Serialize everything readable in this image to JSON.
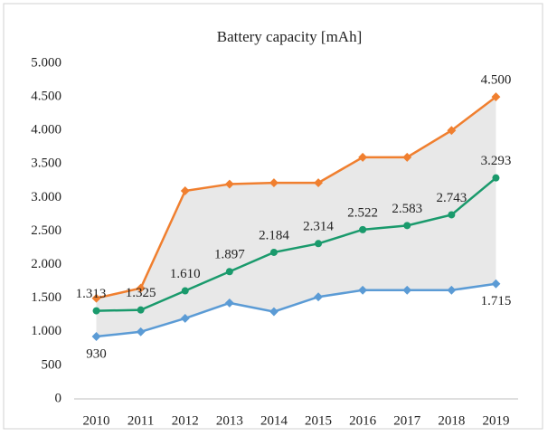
{
  "chart_data": {
    "type": "line",
    "title": "Battery capacity [mAh]",
    "categories": [
      "2010",
      "2011",
      "2012",
      "2013",
      "2014",
      "2015",
      "2016",
      "2017",
      "2018",
      "2019"
    ],
    "series": [
      {
        "color": "#f07f2f",
        "values": [
          1500,
          1650,
          3100,
          3200,
          3220,
          3220,
          3600,
          3600,
          4000,
          4500
        ],
        "value_labels": [
          null,
          null,
          null,
          null,
          null,
          null,
          null,
          null,
          null,
          "4.500"
        ]
      },
      {
        "color": "#1a9a6c",
        "values": [
          1313,
          1325,
          1610,
          1897,
          2184,
          2314,
          2522,
          2583,
          2743,
          3293
        ],
        "value_labels": [
          "1.313",
          "1.325",
          "1.610",
          "1.897",
          "2.184",
          "2.314",
          "2.522",
          "2.583",
          "2.743",
          "3.293"
        ]
      },
      {
        "color": "#5b9bd5",
        "values": [
          930,
          1000,
          1200,
          1430,
          1300,
          1520,
          1620,
          1620,
          1620,
          1715
        ],
        "value_labels": [
          "930",
          null,
          null,
          null,
          null,
          null,
          null,
          null,
          null,
          "1.715"
        ]
      }
    ],
    "range_fill": "#e8e8e8",
    "ylim": [
      0,
      5000
    ],
    "yticks": [
      0,
      500,
      {
        "value": 1000,
        "label": "1.000"
      },
      {
        "value": 1500,
        "label": "1.500"
      },
      {
        "value": 2000,
        "label": "2.000"
      },
      {
        "value": 2500,
        "label": "2.500"
      },
      {
        "value": 3000,
        "label": "3.000"
      },
      {
        "value": 3500,
        "label": "3.500"
      },
      {
        "value": 4000,
        "label": "4.000"
      },
      {
        "value": 4500,
        "label": "4.500"
      },
      {
        "value": 5000,
        "label": "5.000"
      }
    ]
  }
}
